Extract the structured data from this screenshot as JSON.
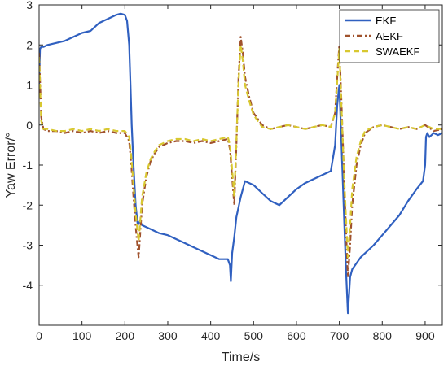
{
  "chart_data": {
    "type": "line",
    "title": "",
    "xlabel": "Time/s",
    "ylabel": "Yaw Error/°",
    "xlim": [
      0,
      940
    ],
    "ylim": [
      -5,
      3
    ],
    "xticks": [
      0,
      100,
      200,
      300,
      400,
      500,
      600,
      700,
      800,
      900
    ],
    "yticks": [
      -4,
      -3,
      -2,
      -1,
      0,
      1,
      2,
      3
    ],
    "grid": false,
    "legend_position": "top-right",
    "series": [
      {
        "name": "EKF",
        "color": "#3060C0",
        "style": "solid",
        "x": [
          0,
          2,
          5,
          10,
          20,
          40,
          60,
          80,
          100,
          120,
          140,
          160,
          180,
          190,
          200,
          205,
          210,
          213,
          216,
          220,
          225,
          230,
          235,
          240,
          260,
          280,
          300,
          320,
          340,
          360,
          380,
          400,
          420,
          440,
          445,
          447,
          450,
          455,
          460,
          470,
          480,
          500,
          520,
          540,
          560,
          580,
          600,
          620,
          640,
          660,
          680,
          690,
          695,
          700,
          705,
          710,
          715,
          720,
          725,
          730,
          750,
          780,
          800,
          820,
          840,
          860,
          880,
          895,
          900,
          902,
          905,
          910,
          920,
          930,
          940
        ],
        "y": [
          1.0,
          1.9,
          1.95,
          1.95,
          2.0,
          2.05,
          2.1,
          2.2,
          2.3,
          2.35,
          2.55,
          2.65,
          2.75,
          2.78,
          2.75,
          2.6,
          2.0,
          1.0,
          0.0,
          -1.0,
          -2.0,
          -2.5,
          -2.4,
          -2.5,
          -2.6,
          -2.7,
          -2.75,
          -2.85,
          -2.95,
          -3.05,
          -3.15,
          -3.25,
          -3.35,
          -3.35,
          -3.5,
          -3.9,
          -3.2,
          -2.8,
          -2.3,
          -1.8,
          -1.4,
          -1.5,
          -1.7,
          -1.9,
          -2.0,
          -1.8,
          -1.6,
          -1.45,
          -1.35,
          -1.25,
          -1.15,
          -0.5,
          0.5,
          1.0,
          -0.5,
          -2.0,
          -3.5,
          -4.7,
          -3.8,
          -3.6,
          -3.3,
          -3.0,
          -2.75,
          -2.5,
          -2.25,
          -1.9,
          -1.6,
          -1.4,
          -1.0,
          -0.3,
          -0.2,
          -0.3,
          -0.2,
          -0.25,
          -0.2
        ]
      },
      {
        "name": "AEKF",
        "color": "#A0522D",
        "style": "dashdot",
        "x": [
          0,
          5,
          10,
          20,
          40,
          60,
          80,
          100,
          120,
          140,
          160,
          180,
          200,
          210,
          215,
          220,
          225,
          230,
          232,
          235,
          240,
          250,
          260,
          270,
          280,
          300,
          320,
          340,
          360,
          380,
          400,
          420,
          440,
          445,
          450,
          455,
          460,
          465,
          470,
          475,
          480,
          490,
          500,
          520,
          540,
          560,
          580,
          600,
          620,
          640,
          660,
          680,
          690,
          695,
          700,
          705,
          710,
          715,
          720,
          725,
          730,
          740,
          750,
          760,
          780,
          800,
          820,
          840,
          860,
          880,
          900,
          920,
          940
        ],
        "y": [
          1.8,
          0.2,
          -0.1,
          -0.15,
          -0.15,
          -0.2,
          -0.15,
          -0.2,
          -0.15,
          -0.2,
          -0.15,
          -0.2,
          -0.2,
          -0.4,
          -1.0,
          -1.8,
          -2.5,
          -3.1,
          -3.3,
          -2.8,
          -2.0,
          -1.3,
          -0.9,
          -0.7,
          -0.55,
          -0.45,
          -0.4,
          -0.4,
          -0.45,
          -0.4,
          -0.45,
          -0.4,
          -0.35,
          -0.6,
          -1.3,
          -2.0,
          -0.5,
          1.2,
          2.2,
          1.8,
          1.2,
          0.7,
          0.3,
          0.0,
          -0.1,
          -0.05,
          0.0,
          -0.05,
          -0.1,
          -0.05,
          0.0,
          -0.05,
          0.3,
          1.2,
          2.0,
          0.5,
          -1.0,
          -2.5,
          -3.8,
          -3.0,
          -2.0,
          -1.0,
          -0.5,
          -0.2,
          -0.05,
          0.0,
          -0.05,
          -0.1,
          -0.05,
          -0.1,
          0.0,
          -0.15,
          -0.1
        ]
      },
      {
        "name": "SWAEKF",
        "color": "#D8C830",
        "style": "dashed",
        "x": [
          0,
          5,
          10,
          20,
          40,
          60,
          80,
          100,
          120,
          140,
          160,
          180,
          200,
          210,
          215,
          220,
          225,
          230,
          232,
          235,
          240,
          250,
          260,
          270,
          280,
          300,
          320,
          340,
          360,
          380,
          400,
          420,
          440,
          445,
          450,
          455,
          460,
          465,
          470,
          475,
          480,
          490,
          500,
          520,
          540,
          560,
          580,
          600,
          620,
          640,
          660,
          680,
          690,
          695,
          700,
          705,
          710,
          715,
          720,
          725,
          730,
          740,
          750,
          760,
          780,
          800,
          820,
          840,
          860,
          880,
          900,
          920,
          940
        ],
        "y": [
          1.7,
          0.1,
          -0.1,
          -0.1,
          -0.15,
          -0.15,
          -0.1,
          -0.15,
          -0.1,
          -0.15,
          -0.1,
          -0.15,
          -0.15,
          -0.3,
          -0.8,
          -1.5,
          -2.2,
          -2.7,
          -2.9,
          -2.5,
          -1.8,
          -1.2,
          -0.85,
          -0.65,
          -0.5,
          -0.4,
          -0.35,
          -0.35,
          -0.4,
          -0.35,
          -0.4,
          -0.35,
          -0.3,
          -0.5,
          -1.1,
          -1.8,
          -0.4,
          1.1,
          2.0,
          1.6,
          1.0,
          0.6,
          0.25,
          -0.05,
          -0.1,
          -0.05,
          0.0,
          -0.05,
          -0.1,
          -0.05,
          0.0,
          -0.05,
          0.3,
          1.1,
          1.9,
          0.4,
          -1.0,
          -2.2,
          -3.3,
          -2.5,
          -1.6,
          -0.8,
          -0.4,
          -0.15,
          -0.05,
          0.0,
          -0.05,
          -0.1,
          -0.05,
          -0.1,
          0.0,
          -0.1,
          -0.1
        ]
      }
    ]
  }
}
